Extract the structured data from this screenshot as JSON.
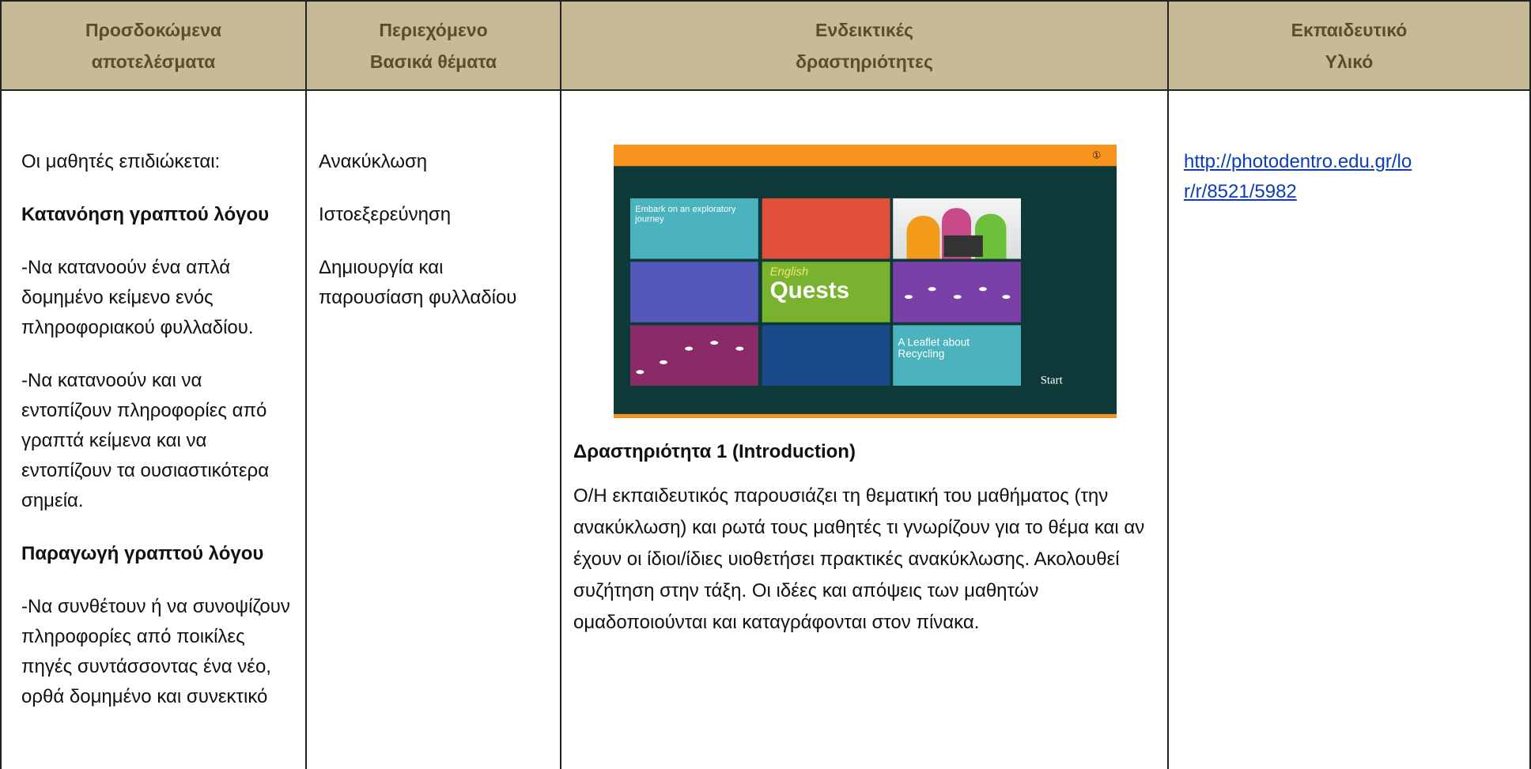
{
  "table": {
    "headers": [
      [
        "Προσδοκώμενα",
        "αποτελέσματα"
      ],
      [
        "Περιεχόμενο",
        "Βασικά θέματα"
      ],
      [
        "Ενδεικτικές",
        "δραστηριότητες"
      ],
      [
        "Εκπαιδευτικό",
        "Υλικό"
      ]
    ],
    "outcomes": [
      {
        "text": "Οι μαθητές επιδιώκεται:",
        "bold": false
      },
      {
        "text": "Κατανόηση γραπτού λόγου",
        "bold": true
      },
      {
        "text": "-Να κατανοούν ένα απλά δομημένο κείμενο ενός πληροφοριακού φυλλαδίου.",
        "bold": false
      },
      {
        "text": "-Να κατανοούν και να εντοπίζουν πληροφορίες από γραπτά κείμενα και να εντοπίζουν τα ουσιαστικότερα σημεία.",
        "bold": false
      },
      {
        "text": "Παραγωγή γραπτού λόγου",
        "bold": true
      },
      {
        "text": "-Να συνθέτουν ή να συνοψίζουν πληροφορίες από ποικίλες πηγές συντάσσοντας ένα νέο, ορθά δομημένο και συνεκτικό",
        "bold": false
      }
    ],
    "content": [
      "Ανακύκλωση",
      "Ιστοεξερεύνηση",
      "Δημιουργία και παρουσίαση φυλλαδίου"
    ],
    "activities": {
      "screenshot": {
        "tile_text": "Embark on an exploratory journey",
        "logo_small": "English",
        "logo_big": "Quests",
        "leaflet": "A Leaflet about Recycling",
        "start": "Start"
      },
      "heading": "Δραστηριότητα 1 (Introduction)",
      "text": "Ο/Η εκπαιδευτικός παρουσιάζει τη θεματική του μαθήματος (την ανακύκλωση) και ρωτά τους μαθητές  τι γνωρίζουν για το θέμα και αν έχουν οι ίδιοι/ίδιες  υιοθετήσει πρακτικές ανακύκλωσης. Ακολουθεί συζήτηση στην τάξη. Οι ιδέες και απόψεις των μαθητών ομαδοποιούνται και καταγράφονται στον πίνακα."
    },
    "material": {
      "link": "http://photodentro.edu.gr/lor/r/8521/5982"
    }
  }
}
